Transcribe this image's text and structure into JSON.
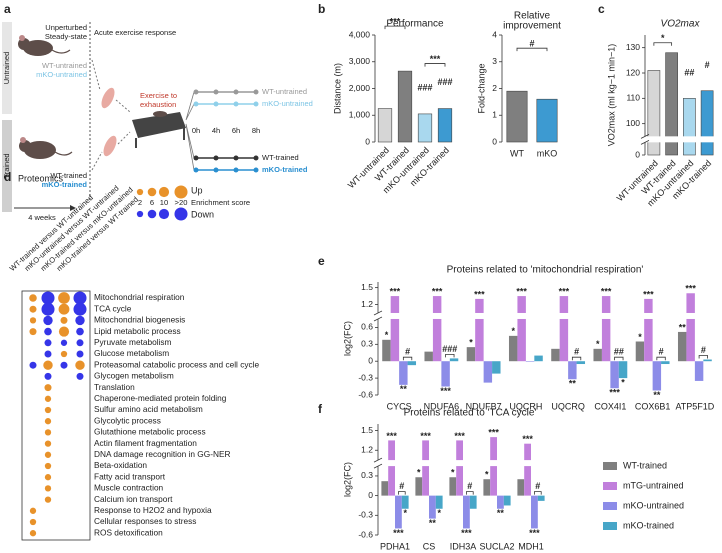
{
  "diagram_a": {
    "panel": "a",
    "row_labels": [
      "Untrained",
      "Trained"
    ],
    "steady_state": [
      "Unperturbed",
      "Steady-state"
    ],
    "acute": "Acute exercise response",
    "groups_left": [
      "WT-untrained",
      "mKO-untrained",
      "WT-trained",
      "mKO-trained"
    ],
    "duration": "4 weeks",
    "exercise": [
      "Exercise to",
      "exhaustion"
    ],
    "times": [
      "0h",
      "4h",
      "6h",
      "8h"
    ],
    "groups_right": [
      "WT-untrained",
      "mKO-untrained",
      "WT-trained",
      "mKO-trained"
    ]
  },
  "chart_data": [
    {
      "type": "bar",
      "panel": "b",
      "title": "Performance",
      "ylabel": "Distance (m)",
      "categories": [
        "WT-untrained",
        "WT-trained",
        "mKO-untrained",
        "mKO-trained"
      ],
      "values": [
        1250,
        2650,
        1050,
        1250
      ],
      "colors": [
        "#d6d6d6",
        "#7f7f7f",
        "#a9d8ee",
        "#3d9ad1"
      ],
      "ylim": [
        0,
        4000
      ],
      "yticks": [
        0,
        {
          "value": 1000,
          "label": "1,000"
        },
        {
          "value": 2000,
          "label": "2,000"
        },
        {
          "value": 3000,
          "label": "3,000"
        },
        {
          "value": 4000,
          "label": "4,000"
        }
      ],
      "brackets": [
        {
          "text": "***",
          "categories": [
            0,
            1
          ]
        },
        {
          "text": "***",
          "categories": [
            2,
            3
          ]
        }
      ],
      "over": [
        null,
        null,
        "###",
        "###"
      ]
    },
    {
      "type": "bar",
      "title": [
        "Relative",
        "improvement"
      ],
      "ylabel": "Fold-change",
      "categories": [
        "WT",
        "mKO"
      ],
      "values": [
        1.9,
        1.6
      ],
      "colors": [
        "#7f7f7f",
        "#3d9ad1"
      ],
      "ylim": [
        0,
        4
      ],
      "yticks": [
        0,
        1,
        2,
        3,
        4
      ],
      "brackets": [
        {
          "text": "#",
          "categories": [
            0,
            1
          ]
        }
      ]
    },
    {
      "type": "bar",
      "panel": "c",
      "title": "VO2max",
      "ylabel": "VO2max (ml kg−1 min−1)",
      "categories": [
        "WT-untrained",
        "WT-trained",
        "mKO-untrained",
        "mKO-trained"
      ],
      "values": [
        121,
        128,
        110,
        113
      ],
      "colors": [
        "#d6d6d6",
        "#7f7f7f",
        "#a9d8ee",
        "#3d9ad1"
      ],
      "ylim": [
        0,
        135
      ],
      "ybreak": [
        5,
        95
      ],
      "yticks": [
        0,
        100,
        110,
        120,
        130
      ],
      "brackets": [
        {
          "text": "*",
          "categories": [
            0,
            1
          ]
        }
      ],
      "over": [
        null,
        null,
        "##",
        "#"
      ]
    },
    {
      "type": "dotplot",
      "panel": "d",
      "title": "Proteomics",
      "columns": [
        "WT-trained versus WT-untrained",
        "mKO-untrained versus WT-untrained",
        "mKO-trained versus mKO-untrained",
        "mKO-trained versus WT-trained"
      ],
      "rows": [
        "Mitochondrial respiration",
        "TCA cycle",
        "Mitochondrial biogenesis",
        "Lipid metabolic process",
        "Pyruvate metabolism",
        "Glucose metabolism",
        "Proteasomal catabolic process and cell cycle",
        "Glycogen metabolism",
        "Translation",
        "Chaperone-mediated protein folding",
        "Sulfur amino acid metabolism",
        "Glycolytic process",
        "Glutathione metabolic process",
        "Actin filament fragmentation",
        "DNA damage recognition in GG-NER",
        "Beta-oxidation",
        "Fatty acid transport",
        "Muscle contraction",
        "Calcium ion transport",
        "Response to H2O2 and hypoxia",
        "Cellular responses to stress",
        "ROS detoxification"
      ],
      "size_title": "Enrichment score",
      "size_legend": [
        2,
        6,
        10,
        {
          "value": 20,
          "label": ">20"
        }
      ],
      "series": [
        {
          "name": "Up",
          "color": "#e8922a",
          "values": [
            [
              4,
              null,
              15,
              null
            ],
            [
              3,
              null,
              12,
              null
            ],
            [
              2,
              null,
              3,
              null
            ],
            [
              3,
              null,
              10,
              null
            ],
            [
              null,
              null,
              null,
              null
            ],
            [
              null,
              null,
              2,
              null
            ],
            [
              null,
              8,
              null,
              8
            ],
            [
              null,
              null,
              null,
              null
            ],
            [
              null,
              3,
              null,
              null
            ],
            [
              null,
              2,
              null,
              null
            ],
            [
              null,
              2,
              null,
              null
            ],
            [
              null,
              2,
              null,
              null
            ],
            [
              null,
              2,
              null,
              null
            ],
            [
              null,
              2,
              null,
              null
            ],
            [
              null,
              2,
              null,
              null
            ],
            [
              null,
              2,
              null,
              null
            ],
            [
              null,
              2,
              null,
              null
            ],
            [
              null,
              2,
              null,
              null
            ],
            [
              null,
              2,
              null,
              null
            ],
            [
              2,
              null,
              null,
              null
            ],
            [
              2,
              null,
              null,
              null
            ],
            [
              2,
              null,
              null,
              null
            ]
          ]
        },
        {
          "name": "Down",
          "color": "#3535e8",
          "values": [
            [
              null,
              20,
              null,
              20
            ],
            [
              null,
              20,
              null,
              20
            ],
            [
              null,
              8,
              null,
              8
            ],
            [
              null,
              4,
              null,
              4
            ],
            [
              null,
              3,
              2,
              3
            ],
            [
              null,
              3,
              null,
              3
            ],
            [
              3,
              null,
              3,
              null
            ],
            [
              null,
              3,
              null,
              3
            ],
            [
              null,
              null,
              null,
              null
            ],
            [
              null,
              null,
              null,
              null
            ],
            [
              null,
              null,
              null,
              null
            ],
            [
              null,
              null,
              null,
              null
            ],
            [
              null,
              null,
              null,
              null
            ],
            [
              null,
              null,
              null,
              null
            ],
            [
              null,
              null,
              null,
              null
            ],
            [
              null,
              null,
              null,
              null
            ],
            [
              null,
              null,
              null,
              null
            ],
            [
              null,
              null,
              null,
              null
            ],
            [
              null,
              null,
              null,
              null
            ],
            [
              null,
              null,
              null,
              null
            ],
            [
              null,
              null,
              null,
              null
            ],
            [
              null,
              null,
              null,
              null
            ]
          ]
        }
      ]
    },
    {
      "type": "bar",
      "panel": "e",
      "title": "Proteins related to 'mitochondrial respiration'",
      "ylabel": "log2(FC)",
      "categories": [
        "CYCS",
        "NDUFA6",
        "NDUFB7",
        "UQCRH",
        "UQCRQ",
        "COX4I1",
        "COX6B1",
        "ATP5F1D"
      ],
      "ylim": [
        -0.6,
        1.6
      ],
      "ybreak": [
        0.75,
        1.05
      ],
      "yticks": [
        -0.6,
        -0.3,
        0,
        0.3,
        0.6,
        1.2,
        1.5
      ],
      "series": [
        {
          "name": "WT-trained",
          "color": "#7f7f7f",
          "values": [
            0.38,
            0.17,
            0.25,
            0.45,
            0.22,
            0.22,
            0.35,
            0.52
          ],
          "sig": [
            "*",
            null,
            "*",
            "*",
            null,
            "*",
            "*",
            "**"
          ]
        },
        {
          "name": "mTG-untrained",
          "color": "#c17fdc",
          "values": [
            1.35,
            1.35,
            1.3,
            1.35,
            1.35,
            1.35,
            1.3,
            1.4
          ],
          "sig": [
            "***",
            "***",
            "***",
            "***",
            "***",
            "***",
            "***",
            "***"
          ]
        },
        {
          "name": "mKO-untrained",
          "color": "#8c8ce8",
          "values": [
            -0.42,
            -0.45,
            -0.38,
            -0.01,
            -0.32,
            -0.48,
            -0.52,
            -0.35
          ],
          "sig": [
            "**",
            "***",
            null,
            null,
            "**",
            "***",
            "**",
            null
          ]
        },
        {
          "name": "mKO-trained",
          "color": "#47a6c8",
          "values": [
            -0.07,
            0.05,
            -0.22,
            0.1,
            -0.05,
            -0.3,
            -0.05,
            0.03
          ],
          "sig": [
            null,
            null,
            null,
            null,
            null,
            "*",
            null,
            null
          ]
        }
      ],
      "bracket_sig": [
        "#",
        "###",
        null,
        null,
        "#",
        "##",
        "#",
        "#"
      ]
    },
    {
      "type": "bar",
      "panel": "f",
      "title": "Proteins related to 'TCA cycle'",
      "ylabel": "log2(FC)",
      "categories": [
        "PDHA1",
        "CS",
        "IDH3A",
        "SUCLA2",
        "MDH1"
      ],
      "ylim": [
        -0.6,
        1.6
      ],
      "ybreak": [
        0.45,
        1.05
      ],
      "yticks": [
        -0.6,
        -0.3,
        0,
        0.3,
        1.2,
        1.5
      ],
      "legend": true,
      "series": [
        {
          "name": "WT-trained",
          "color": "#7f7f7f",
          "values": [
            0.22,
            0.28,
            0.28,
            0.25,
            0.25
          ],
          "sig": [
            null,
            "*",
            "*",
            "*",
            null
          ]
        },
        {
          "name": "mTG-untrained",
          "color": "#c17fdc",
          "values": [
            1.35,
            1.35,
            1.35,
            1.4,
            1.3
          ],
          "sig": [
            "***",
            "***",
            "***",
            "***",
            "***"
          ]
        },
        {
          "name": "mKO-untrained",
          "color": "#8c8ce8",
          "values": [
            -0.5,
            -0.35,
            -0.5,
            -0.2,
            -0.5
          ],
          "sig": [
            "***",
            "**",
            "***",
            "**",
            "***"
          ]
        },
        {
          "name": "mKO-trained",
          "color": "#47a6c8",
          "values": [
            -0.2,
            -0.2,
            -0.2,
            -0.15,
            -0.08
          ],
          "sig": [
            "*",
            "*",
            null,
            null,
            null
          ]
        }
      ],
      "bracket_sig": [
        "#",
        null,
        "#",
        null,
        "#"
      ]
    }
  ]
}
